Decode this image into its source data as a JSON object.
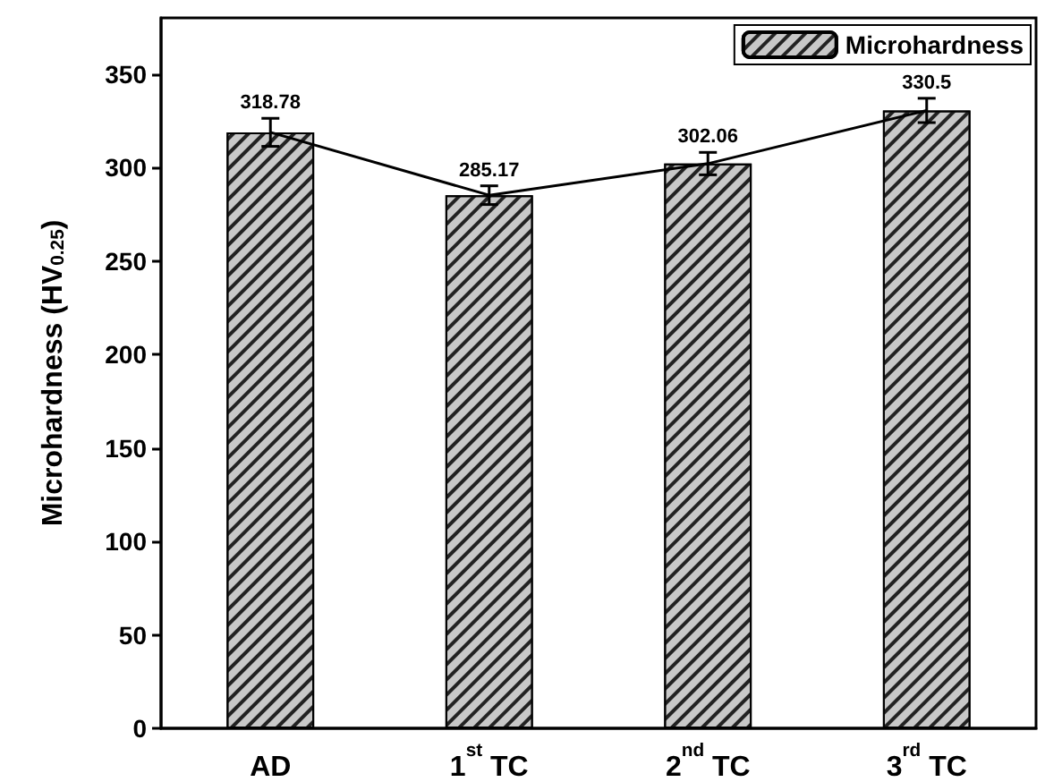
{
  "chart_data": {
    "type": "bar",
    "ylabel": "Microhardness (HV$_{0.25}$)",
    "categories": [
      "AD",
      "1$^{st}$ TC",
      "2$^{nd}$ TC",
      "3$^{rd}$ TC"
    ],
    "series": [
      {
        "name": "Microhardness",
        "color": "#c8c8c8",
        "values": [
          318.78,
          285.17,
          302.06,
          330.5
        ],
        "errors": [
          7.5,
          5,
          6,
          6.5
        ],
        "value_labels": [
          "318.78",
          "285.17",
          "302.06",
          "330.5"
        ]
      },
      {
        "type": "line",
        "color": "#000000",
        "values": [
          318.78,
          285.17,
          302.06,
          330.5
        ],
        "marker": "none",
        "line_style": "solid"
      }
    ],
    "ylim": [
      0,
      380
    ],
    "yticks": [
      0,
      50,
      100,
      150,
      200,
      250,
      300,
      350
    ],
    "grid": false,
    "legend": "top right"
  }
}
